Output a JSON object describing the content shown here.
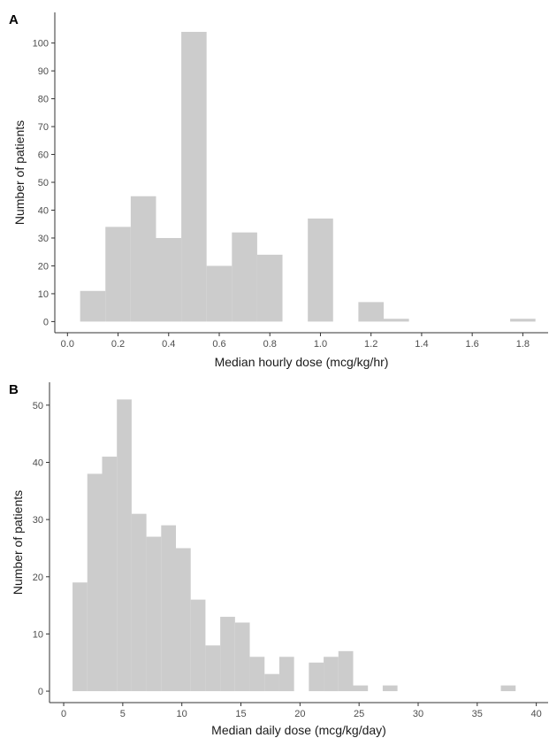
{
  "colors": {
    "bar": "#cccccc",
    "axis": "#333333"
  },
  "chart_data": [
    {
      "type": "bar",
      "panel_label": "A",
      "xlabel": "Median hourly dose (mcg/kg/hr)",
      "ylabel": "Number of patients",
      "xlim": [
        -0.05,
        1.9
      ],
      "ylim": [
        -4,
        111
      ],
      "xticks": [
        "0.0",
        "0.2",
        "0.4",
        "0.6",
        "0.8",
        "1.0",
        "1.2",
        "1.4",
        "1.6",
        "1.8"
      ],
      "yticks": [
        "0",
        "10",
        "20",
        "30",
        "40",
        "50",
        "60",
        "70",
        "80",
        "90",
        "100"
      ],
      "bin_width": 0.1,
      "bins": [
        {
          "x0": 0.05,
          "x1": 0.15,
          "value": 11
        },
        {
          "x0": 0.15,
          "x1": 0.25,
          "value": 34
        },
        {
          "x0": 0.25,
          "x1": 0.35,
          "value": 45
        },
        {
          "x0": 0.35,
          "x1": 0.45,
          "value": 30
        },
        {
          "x0": 0.45,
          "x1": 0.55,
          "value": 104
        },
        {
          "x0": 0.55,
          "x1": 0.65,
          "value": 20
        },
        {
          "x0": 0.65,
          "x1": 0.75,
          "value": 32
        },
        {
          "x0": 0.75,
          "x1": 0.85,
          "value": 24
        },
        {
          "x0": 0.85,
          "x1": 0.95,
          "value": 0
        },
        {
          "x0": 0.95,
          "x1": 1.05,
          "value": 37
        },
        {
          "x0": 1.05,
          "x1": 1.15,
          "value": 0
        },
        {
          "x0": 1.15,
          "x1": 1.25,
          "value": 7
        },
        {
          "x0": 1.25,
          "x1": 1.35,
          "value": 1
        },
        {
          "x0": 1.35,
          "x1": 1.45,
          "value": 0
        },
        {
          "x0": 1.45,
          "x1": 1.55,
          "value": 0
        },
        {
          "x0": 1.55,
          "x1": 1.65,
          "value": 0
        },
        {
          "x0": 1.65,
          "x1": 1.75,
          "value": 0
        },
        {
          "x0": 1.75,
          "x1": 1.85,
          "value": 1
        }
      ]
    },
    {
      "type": "bar",
      "panel_label": "B",
      "xlabel": "Median daily dose (mcg/kg/day)",
      "ylabel": "Number of patients",
      "xlim": [
        -1.2,
        41
      ],
      "ylim": [
        -2,
        54
      ],
      "xticks": [
        "0",
        "5",
        "10",
        "15",
        "20",
        "25",
        "30",
        "35",
        "40"
      ],
      "yticks": [
        "0",
        "10",
        "20",
        "30",
        "40",
        "50"
      ],
      "bin_width": 1.25,
      "bins": [
        {
          "x0": 0.75,
          "x1": 2.0,
          "value": 19
        },
        {
          "x0": 2.0,
          "x1": 3.25,
          "value": 38
        },
        {
          "x0": 3.25,
          "x1": 4.5,
          "value": 41
        },
        {
          "x0": 4.5,
          "x1": 5.75,
          "value": 51
        },
        {
          "x0": 5.75,
          "x1": 7.0,
          "value": 31
        },
        {
          "x0": 7.0,
          "x1": 8.25,
          "value": 27
        },
        {
          "x0": 8.25,
          "x1": 9.5,
          "value": 29
        },
        {
          "x0": 9.5,
          "x1": 10.75,
          "value": 25
        },
        {
          "x0": 10.75,
          "x1": 12.0,
          "value": 16
        },
        {
          "x0": 12.0,
          "x1": 13.25,
          "value": 8
        },
        {
          "x0": 13.25,
          "x1": 14.5,
          "value": 13
        },
        {
          "x0": 14.5,
          "x1": 15.75,
          "value": 12
        },
        {
          "x0": 15.75,
          "x1": 17.0,
          "value": 6
        },
        {
          "x0": 17.0,
          "x1": 18.25,
          "value": 3
        },
        {
          "x0": 18.25,
          "x1": 19.5,
          "value": 6
        },
        {
          "x0": 19.5,
          "x1": 20.75,
          "value": 0
        },
        {
          "x0": 20.75,
          "x1": 22.0,
          "value": 5
        },
        {
          "x0": 22.0,
          "x1": 23.25,
          "value": 6
        },
        {
          "x0": 23.25,
          "x1": 24.5,
          "value": 7
        },
        {
          "x0": 24.5,
          "x1": 25.75,
          "value": 1
        },
        {
          "x0": 25.75,
          "x1": 27.0,
          "value": 0
        },
        {
          "x0": 27.0,
          "x1": 28.25,
          "value": 1
        },
        {
          "x0": 28.25,
          "x1": 29.5,
          "value": 0
        },
        {
          "x0": 37.0,
          "x1": 38.25,
          "value": 1
        }
      ]
    }
  ]
}
